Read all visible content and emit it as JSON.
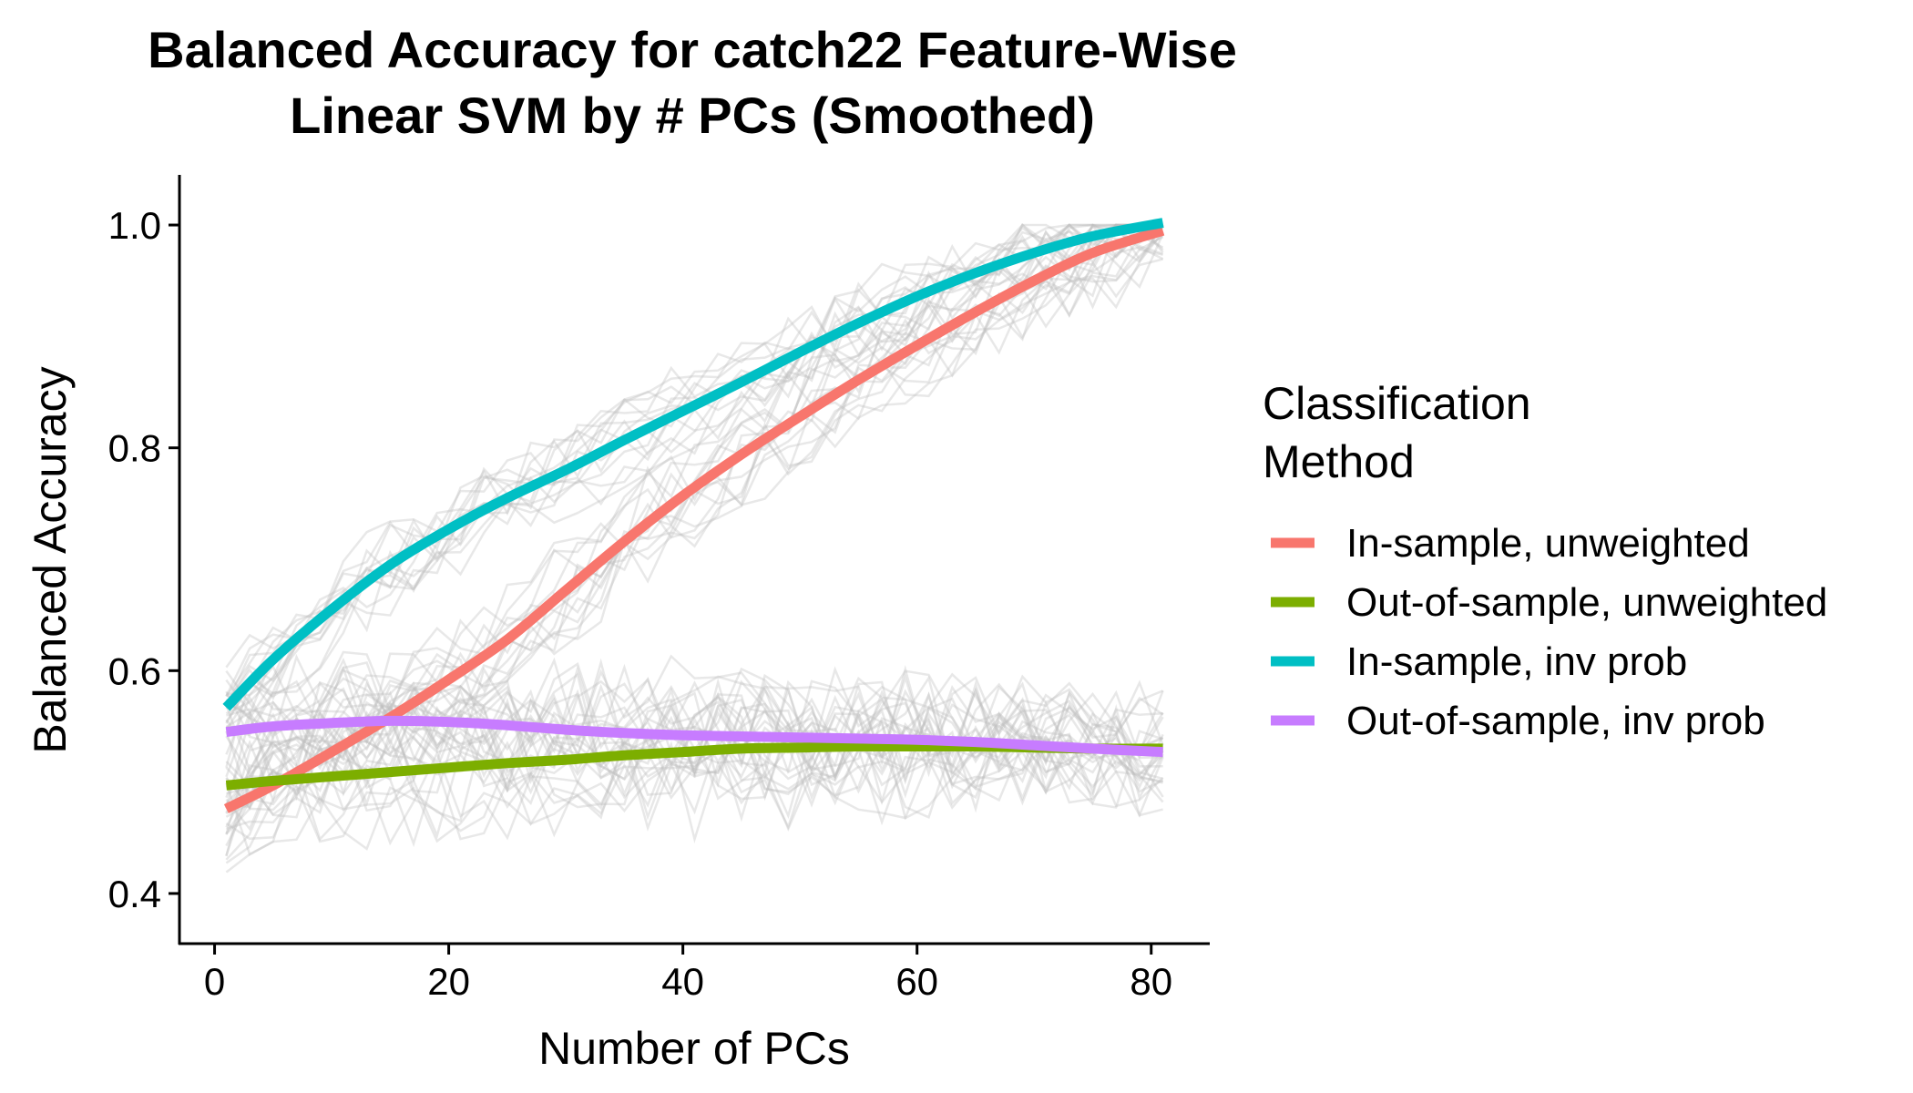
{
  "chart_data": {
    "type": "line",
    "title_lines": [
      "Balanced Accuracy for catch22 Feature-Wise",
      "Linear SVM by # PCs (Smoothed)"
    ],
    "xlabel": "Number of PCs",
    "ylabel": "Balanced Accuracy",
    "xlim": [
      -3,
      85
    ],
    "ylim": [
      0.355,
      1.045
    ],
    "xticks": [
      0,
      20,
      40,
      60,
      80
    ],
    "xtick_labels": [
      "0",
      "20",
      "40",
      "60",
      "80"
    ],
    "yticks": [
      0.4,
      0.6,
      0.8,
      1.0
    ],
    "ytick_labels": [
      "0.4",
      "0.6",
      "0.8",
      "1.0"
    ],
    "grid": false,
    "legend": {
      "title_lines": [
        "Classification",
        "Method"
      ],
      "placement": "right"
    },
    "series": [
      {
        "name": "In-sample, unweighted",
        "color": "#F8766D",
        "x": [
          1,
          5,
          10,
          15,
          20,
          25,
          30,
          35,
          40,
          45,
          50,
          55,
          60,
          65,
          70,
          75,
          81
        ],
        "y": [
          0.476,
          0.497,
          0.527,
          0.558,
          0.592,
          0.628,
          0.672,
          0.716,
          0.757,
          0.794,
          0.828,
          0.861,
          0.892,
          0.922,
          0.95,
          0.975,
          0.995
        ]
      },
      {
        "name": "Out-of-sample, unweighted",
        "color": "#7CAE00",
        "x": [
          1,
          5,
          10,
          15,
          20,
          25,
          30,
          35,
          40,
          45,
          50,
          55,
          60,
          65,
          70,
          75,
          81
        ],
        "y": [
          0.497,
          0.501,
          0.505,
          0.509,
          0.513,
          0.517,
          0.52,
          0.524,
          0.527,
          0.53,
          0.531,
          0.532,
          0.532,
          0.532,
          0.531,
          0.53,
          0.53
        ]
      },
      {
        "name": "In-sample, inv prob",
        "color": "#00BFC4",
        "x": [
          1,
          5,
          10,
          15,
          20,
          25,
          30,
          35,
          40,
          45,
          50,
          55,
          60,
          65,
          70,
          75,
          81
        ],
        "y": [
          0.567,
          0.61,
          0.655,
          0.695,
          0.727,
          0.755,
          0.78,
          0.807,
          0.833,
          0.859,
          0.886,
          0.912,
          0.936,
          0.957,
          0.975,
          0.99,
          1.002
        ]
      },
      {
        "name": "Out-of-sample, inv prob",
        "color": "#C77CFF",
        "x": [
          1,
          5,
          10,
          15,
          20,
          25,
          30,
          35,
          40,
          45,
          50,
          55,
          60,
          65,
          70,
          75,
          81
        ],
        "y": [
          0.545,
          0.55,
          0.553,
          0.555,
          0.554,
          0.551,
          0.547,
          0.544,
          0.542,
          0.541,
          0.54,
          0.539,
          0.538,
          0.536,
          0.533,
          0.53,
          0.527
        ]
      }
    ]
  }
}
